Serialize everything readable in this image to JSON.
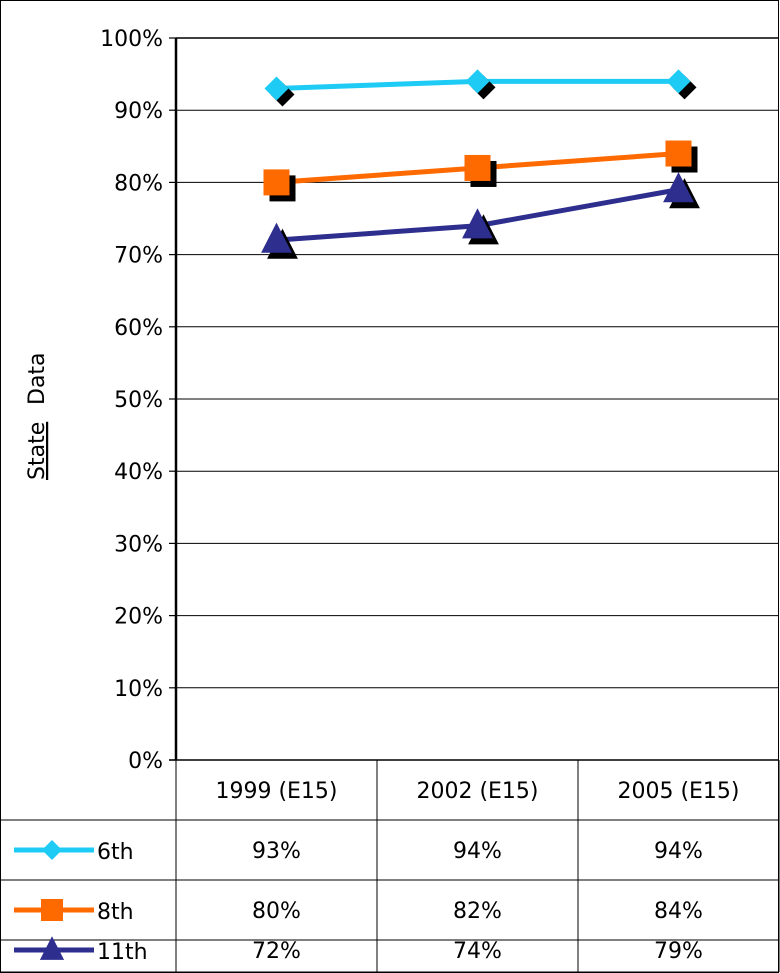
{
  "chart_data": {
    "type": "line",
    "ylabel_underlined": "State",
    "ylabel_rest": "Data",
    "categories": [
      "1999 (E15)",
      "2002 (E15)",
      "2005 (E15)"
    ],
    "ylim": [
      0,
      100
    ],
    "yticks": [
      "0%",
      "10%",
      "20%",
      "30%",
      "40%",
      "50%",
      "60%",
      "70%",
      "80%",
      "90%",
      "100%"
    ],
    "grid": true,
    "legend": "data-table-left",
    "series": [
      {
        "name": "6th",
        "values": [
          93,
          94,
          94
        ],
        "labels": [
          "93%",
          "94%",
          "94%"
        ],
        "color": "#1ECBF5",
        "marker": "diamond"
      },
      {
        "name": "8th",
        "values": [
          80,
          82,
          84
        ],
        "labels": [
          "80%",
          "82%",
          "84%"
        ],
        "color": "#FF6A00",
        "marker": "square"
      },
      {
        "name": "11th",
        "values": [
          72,
          74,
          79
        ],
        "labels": [
          "72%",
          "74%",
          "79%"
        ],
        "color": "#2E2E8E",
        "marker": "triangle"
      }
    ]
  }
}
